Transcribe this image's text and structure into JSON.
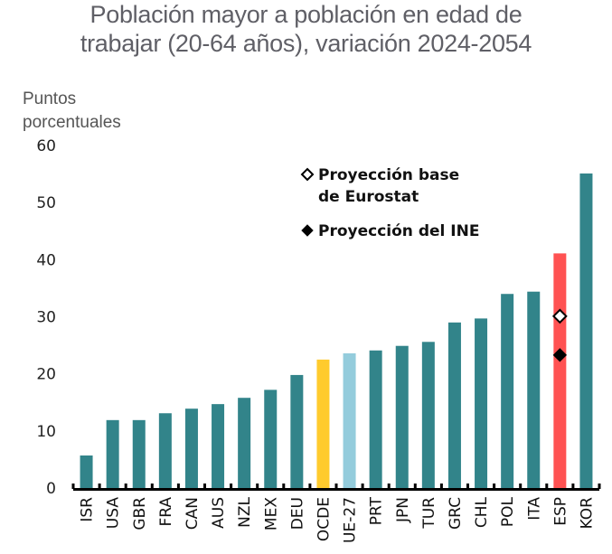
{
  "chart_data": {
    "type": "bar",
    "title": "Población mayor a población en edad de trabajar (20-64 años), variación 2024-2054",
    "title_lines": [
      "Población mayor a población en edad de",
      "trabajar (20-64 años), variación 2024-2054"
    ],
    "ylabel": "Puntos porcentuales",
    "ylabel_lines": [
      "Puntos",
      "porcentuales"
    ],
    "xlabel": "",
    "ylim": [
      0,
      60
    ],
    "yticks": [
      0,
      10,
      20,
      30,
      40,
      50,
      60
    ],
    "grid": false,
    "categories": [
      "ISR",
      "USA",
      "GBR",
      "FRA",
      "CAN",
      "AUS",
      "NZL",
      "MEX",
      "DEU",
      "OCDE",
      "UE-27",
      "PRT",
      "JPN",
      "TUR",
      "GRC",
      "CHL",
      "POL",
      "ITA",
      "ESP",
      "KOR"
    ],
    "values": [
      5.7,
      11.9,
      11.9,
      13.1,
      13.9,
      14.7,
      15.8,
      17.2,
      19.8,
      22.5,
      23.6,
      24.1,
      24.9,
      25.6,
      29.0,
      29.7,
      34.0,
      34.4,
      41.1,
      55.1
    ],
    "bar_colors": [
      "#32848a",
      "#32848a",
      "#32848a",
      "#32848a",
      "#32848a",
      "#32848a",
      "#32848a",
      "#32848a",
      "#32848a",
      "#ffcb2d",
      "#94ccdc",
      "#32848a",
      "#32848a",
      "#32848a",
      "#32848a",
      "#32848a",
      "#32848a",
      "#32848a",
      "#ff5252",
      "#32848a"
    ],
    "markers": [
      {
        "category": "ESP",
        "name": "Proyección base de Eurostat",
        "value": 30.1,
        "style": "hollow-diamond"
      },
      {
        "category": "ESP",
        "name": "Proyección del INE",
        "value": 23.3,
        "style": "filled-diamond"
      }
    ],
    "legend": {
      "placement": "top-center",
      "entries": [
        {
          "symbol": "hollow-diamond",
          "lines": [
            "Proyección base",
            "de Eurostat"
          ]
        },
        {
          "symbol": "filled-diamond",
          "lines": [
            "Proyección del INE"
          ]
        }
      ]
    }
  }
}
